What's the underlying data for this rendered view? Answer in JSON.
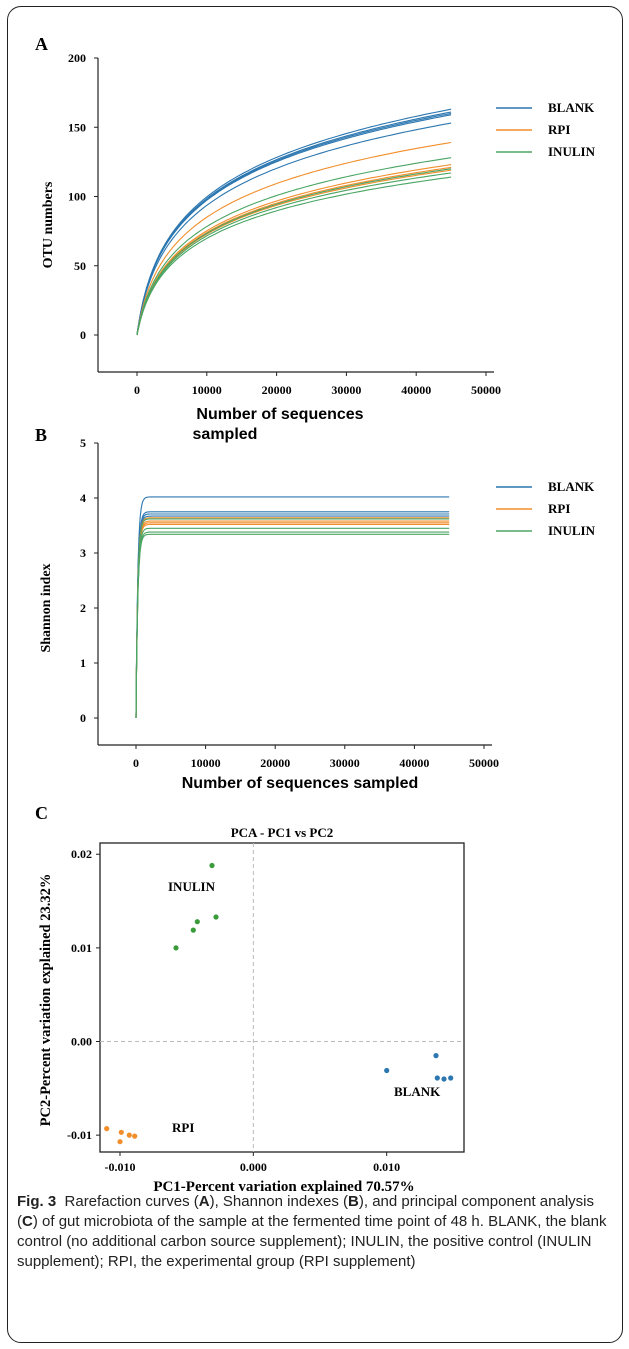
{
  "chart_data": [
    {
      "panel": "A",
      "type": "line",
      "xlabel": "Number of sequences sampled",
      "ylabel": "OTU numbers",
      "xlim": [
        0,
        50000
      ],
      "ylim": [
        0,
        200
      ],
      "xticks": [
        "0",
        "10000",
        "20000",
        "30000",
        "40000",
        "50000"
      ],
      "yticks": [
        "0",
        "50",
        "100",
        "150",
        "200"
      ],
      "legend": [
        "BLANK",
        "RPI",
        "INULIN"
      ],
      "legend_position": "right",
      "colors": {
        "BLANK": "#2c77b0",
        "RPI": "#f28e2b",
        "INULIN": "#4aa564"
      },
      "x_end": 45000,
      "series": [
        {
          "name": "BLANK",
          "finals": [
            163,
            161,
            160,
            159,
            153
          ]
        },
        {
          "name": "RPI",
          "finals": [
            139,
            123,
            121,
            119
          ]
        },
        {
          "name": "INULIN",
          "finals": [
            128,
            120,
            117,
            114
          ]
        }
      ]
    },
    {
      "panel": "B",
      "type": "line",
      "xlabel": "Number of sequences sampled",
      "ylabel": "Shannon index",
      "xlim": [
        0,
        50000
      ],
      "ylim": [
        0,
        5
      ],
      "xticks": [
        "0",
        "10000",
        "20000",
        "30000",
        "40000",
        "50000"
      ],
      "yticks": [
        "0",
        "1",
        "2",
        "3",
        "4",
        "5"
      ],
      "legend": [
        "BLANK",
        "RPI",
        "INULIN"
      ],
      "legend_position": "right",
      "colors": {
        "BLANK": "#2c77b0",
        "RPI": "#f28e2b",
        "INULIN": "#4aa564"
      },
      "x_end": 45000,
      "series": [
        {
          "name": "BLANK",
          "finals": [
            4.02,
            3.75,
            3.71,
            3.67
          ]
        },
        {
          "name": "RPI",
          "finals": [
            3.64,
            3.58,
            3.55,
            3.52
          ]
        },
        {
          "name": "INULIN",
          "finals": [
            3.62,
            3.45,
            3.38,
            3.34
          ]
        }
      ]
    },
    {
      "panel": "C",
      "type": "scatter",
      "title": "PCA - PC1 vs PC2",
      "xlabel": "PC1-Percent variation explained 70.57%",
      "ylabel": "PC2-Percent variation explained 23.32%",
      "xlim": [
        -0.0115,
        0.0158
      ],
      "ylim": [
        -0.0118,
        0.0212
      ],
      "xticks": [
        "-0.010",
        "0.000",
        "0.010"
      ],
      "yticks": [
        "-0.01",
        "0.00",
        "0.01",
        "0.02"
      ],
      "colors": {
        "INULIN": "#3a9b3a",
        "BLANK": "#2c77b0",
        "RPI": "#f28e2b"
      },
      "series": [
        {
          "name": "INULIN",
          "points": [
            [
              -0.0031,
              0.0188
            ],
            [
              -0.0028,
              0.0133
            ],
            [
              -0.0042,
              0.0128
            ],
            [
              -0.0045,
              0.0119
            ],
            [
              -0.0058,
              0.01
            ]
          ]
        },
        {
          "name": "BLANK",
          "points": [
            [
              0.01,
              -0.0031
            ],
            [
              0.0137,
              -0.0015
            ],
            [
              0.0138,
              -0.0039
            ],
            [
              0.0143,
              -0.004
            ],
            [
              0.0148,
              -0.0039
            ]
          ]
        },
        {
          "name": "RPI",
          "points": [
            [
              -0.011,
              -0.0093
            ],
            [
              -0.0099,
              -0.0097
            ],
            [
              -0.0093,
              -0.01
            ],
            [
              -0.0089,
              -0.0101
            ],
            [
              -0.01,
              -0.0107
            ]
          ]
        }
      ]
    }
  ],
  "caption": {
    "label": "Fig. 3",
    "text": "Rarefaction curves (A), Shannon indexes (B), and principal component analysis (C) of gut microbiota of the sample at the fermented time point of 48 h. BLANK, the blank control (no additional carbon  source supplement); INULIN, the positive control (INULIN supplement); RPI, the experimental group (RPI supplement)"
  }
}
